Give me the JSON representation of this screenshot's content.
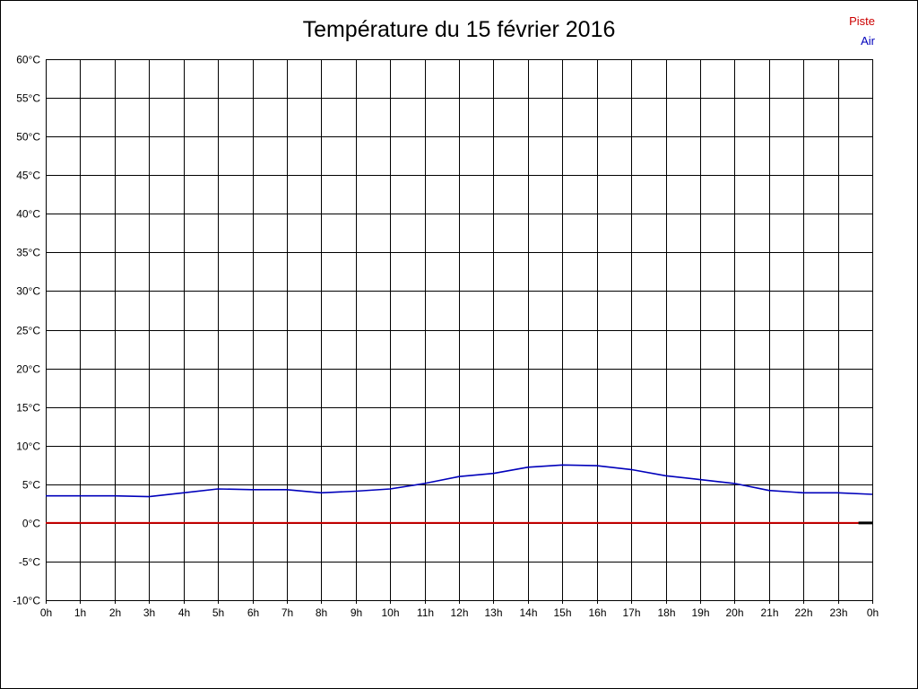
{
  "chart_data": {
    "type": "line",
    "title": "Température du 15 février 2016",
    "xlabel": "",
    "ylabel": "",
    "xlim": [
      0,
      24
    ],
    "ylim": [
      -10,
      60
    ],
    "grid": true,
    "grid_color": "#000000",
    "legend_position": "top-right",
    "x_tick_labels": [
      "0h",
      "1h",
      "2h",
      "3h",
      "4h",
      "5h",
      "6h",
      "7h",
      "8h",
      "9h",
      "10h",
      "11h",
      "12h",
      "13h",
      "14h",
      "15h",
      "16h",
      "17h",
      "18h",
      "19h",
      "20h",
      "21h",
      "22h",
      "23h",
      "0h"
    ],
    "y_ticks": [
      -10,
      -5,
      0,
      5,
      10,
      15,
      20,
      25,
      30,
      35,
      40,
      45,
      50,
      55,
      60
    ],
    "y_tick_suffix": "°C",
    "series": [
      {
        "name": "Piste",
        "color": "#cc0000",
        "width": 2,
        "x": [
          0,
          1,
          2,
          3,
          4,
          5,
          6,
          7,
          8,
          9,
          10,
          11,
          12,
          13,
          14,
          15,
          16,
          17,
          18,
          19,
          20,
          21,
          22,
          23,
          24
        ],
        "values": [
          0,
          0,
          0,
          0,
          0,
          0,
          0,
          0,
          0,
          0,
          0,
          0,
          0,
          0,
          0,
          0,
          0,
          0,
          0,
          0,
          0,
          0,
          0,
          0,
          0
        ]
      },
      {
        "name": "Air",
        "color": "#0000bb",
        "width": 1.6,
        "x": [
          0,
          1,
          2,
          3,
          4,
          5,
          6,
          7,
          8,
          9,
          10,
          11,
          12,
          13,
          14,
          15,
          16,
          17,
          18,
          19,
          20,
          21,
          22,
          23,
          24
        ],
        "values": [
          3.5,
          3.5,
          3.5,
          3.4,
          3.9,
          4.4,
          4.3,
          4.3,
          3.9,
          4.1,
          4.4,
          5.1,
          6.0,
          6.4,
          7.2,
          7.5,
          7.4,
          6.9,
          6.1,
          5.6,
          5.1,
          4.2,
          3.9,
          3.9,
          3.7
        ]
      },
      {
        "name": "",
        "color": "#000000",
        "width": 3,
        "x": [
          23.6,
          24
        ],
        "values": [
          0,
          0
        ]
      }
    ]
  }
}
